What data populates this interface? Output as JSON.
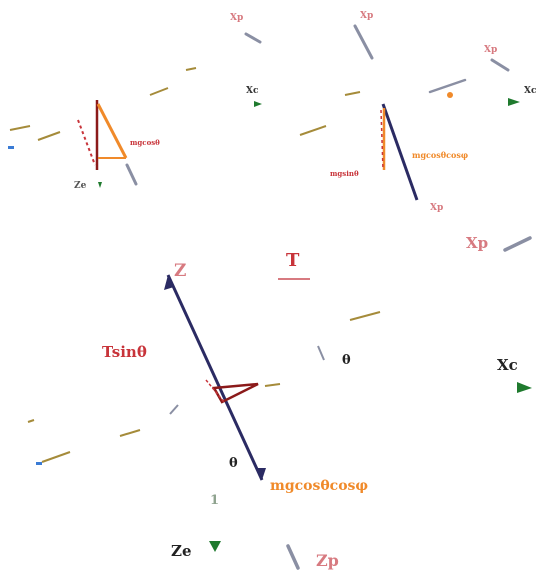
{
  "colors": {
    "navy": "#2b2b63",
    "red": "#c8343a",
    "darkred": "#8b1a1a",
    "orange": "#f08a2a",
    "green": "#1f7a2e",
    "gray": "#8a8fa3",
    "pink": "#d77a80",
    "olive": "#a58b3a"
  },
  "labels": {
    "xp_top_left": "Xp",
    "xp_top_mid": "Xp",
    "xp_top_right": "Xp",
    "xc_top_left": "Xc",
    "xc_top_right": "Xc",
    "ze_top_left": "Ze",
    "mgcos_top_left": "mgcosθ",
    "mgcos_top_right": "mgcosθcosφ",
    "mgsin_top_right": "mgsinθ",
    "xp_mid_right": "Xp",
    "xp_small_right": "Xp",
    "z_main": "Z",
    "t_main": "T",
    "tsin_main": "Tsinθ",
    "theta_right": "θ",
    "theta_lower": "θ",
    "one_lower": "1",
    "xc_main": "Xc",
    "mgcos_main": "mgcosθcosφ",
    "ze_main": "Ze",
    "zp_main": "Zp"
  },
  "icons": {
    "ze_arrow": "down-triangle-icon",
    "xc_arrow": "right-triangle-icon"
  }
}
